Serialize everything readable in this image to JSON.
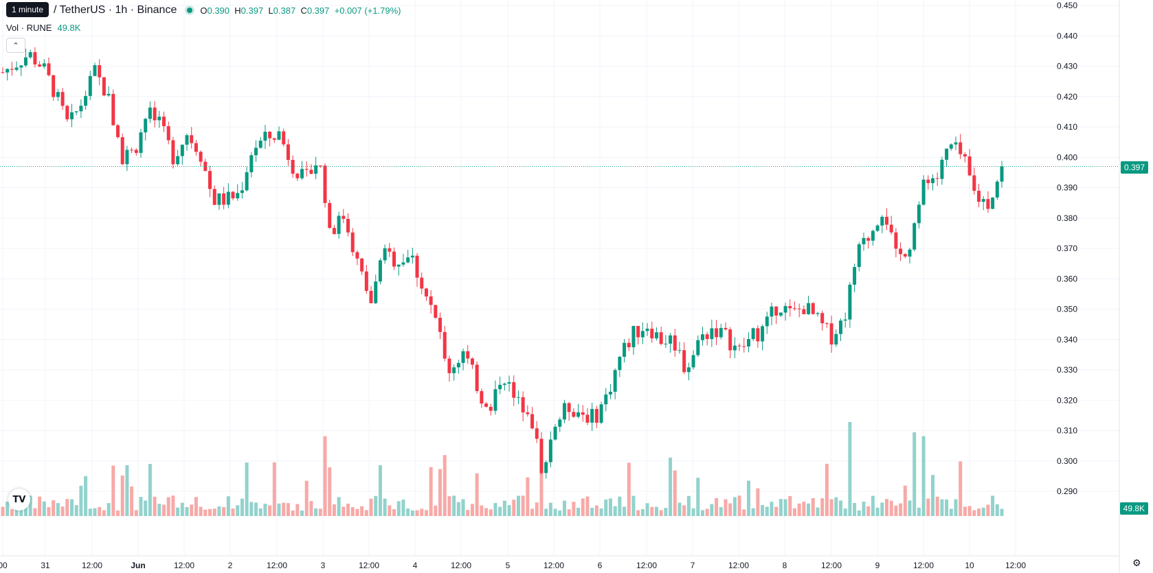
{
  "tooltip": "1 minute",
  "header": {
    "symbol": "/ TetherUS · 1h · Binance",
    "open_label": "O",
    "open": "0.390",
    "high_label": "H",
    "high": "0.397",
    "low_label": "L",
    "low": "0.387",
    "close_label": "C",
    "close": "0.397",
    "change": "+0.007 (+1.79%)"
  },
  "volume": {
    "label": "Vol · RUNE",
    "value": "49.8K"
  },
  "price_axis": {
    "ticks": [
      "0.450",
      "0.440",
      "0.430",
      "0.420",
      "0.410",
      "0.400",
      "0.390",
      "0.380",
      "0.370",
      "0.360",
      "0.350",
      "0.340",
      "0.330",
      "0.320",
      "0.310",
      "0.300",
      "0.290"
    ],
    "last_price": "0.397",
    "last_volume": "49.8K"
  },
  "time_axis": {
    "labels": [
      "00",
      "31",
      "12:00",
      "Jun",
      "12:00",
      "2",
      "12:00",
      "3",
      "12:00",
      "4",
      "12:00",
      "5",
      "12:00",
      "6",
      "12:00",
      "7",
      "12:00",
      "8",
      "12:00",
      "9",
      "12:00",
      "10",
      "12:00"
    ]
  },
  "colors": {
    "up": "#089981",
    "down": "#f23645",
    "up_volume": "#92d2cc",
    "down_volume": "#f7a9a7",
    "grid": "#f0f3fa"
  },
  "icons": {
    "logo": "tradingview-logo-icon",
    "collapse": "chevron-up-icon",
    "settings": "gear-icon"
  },
  "chart_data": {
    "type": "candlestick",
    "symbol_pair": "TetherUS",
    "interval": "1h",
    "exchange": "Binance",
    "ylim": [
      0.285,
      0.452
    ],
    "keypoints": [
      {
        "x": "31 00:00",
        "y": 0.428
      },
      {
        "x": "31 02:00",
        "y": 0.431
      },
      {
        "x": "31 05:00",
        "y": 0.434
      },
      {
        "x": "31 09:00",
        "y": 0.43
      },
      {
        "x": "31 12:00",
        "y": 0.421
      },
      {
        "x": "31 17:00",
        "y": 0.41
      },
      {
        "x": "31 22:00",
        "y": 0.418
      },
      {
        "x": "Jun 1 03:00",
        "y": 0.428
      },
      {
        "x": "Jun 1 06:00",
        "y": 0.42
      },
      {
        "x": "Jun 1 09:00",
        "y": 0.4
      },
      {
        "x": "Jun 1 12:00",
        "y": 0.402
      },
      {
        "x": "Jun 1 16:00",
        "y": 0.415
      },
      {
        "x": "Jun 1 20:00",
        "y": 0.41
      },
      {
        "x": "2 00:00",
        "y": 0.4
      },
      {
        "x": "2 04:00",
        "y": 0.408
      },
      {
        "x": "2 08:00",
        "y": 0.402
      },
      {
        "x": "2 12:00",
        "y": 0.386
      },
      {
        "x": "2 17:00",
        "y": 0.386
      },
      {
        "x": "2 22:00",
        "y": 0.388
      },
      {
        "x": "3 02:00",
        "y": 0.403
      },
      {
        "x": "3 07:00",
        "y": 0.406
      },
      {
        "x": "3 11:00",
        "y": 0.408
      },
      {
        "x": "3 15:00",
        "y": 0.398
      },
      {
        "x": "3 19:00",
        "y": 0.392
      },
      {
        "x": "3 22:00",
        "y": 0.4
      },
      {
        "x": "4 01:00",
        "y": 0.376
      },
      {
        "x": "4 05:00",
        "y": 0.381
      },
      {
        "x": "4 09:00",
        "y": 0.365
      },
      {
        "x": "4 12:00",
        "y": 0.352
      },
      {
        "x": "4 15:00",
        "y": 0.368
      },
      {
        "x": "4 19:00",
        "y": 0.366
      },
      {
        "x": "4 23:00",
        "y": 0.368
      },
      {
        "x": "5 03:00",
        "y": 0.357
      },
      {
        "x": "5 06:00",
        "y": 0.345
      },
      {
        "x": "5 09:00",
        "y": 0.33
      },
      {
        "x": "5 13:00",
        "y": 0.336
      },
      {
        "x": "5 17:00",
        "y": 0.326
      },
      {
        "x": "5 20:00",
        "y": 0.314
      },
      {
        "x": "5 22:00",
        "y": 0.33
      },
      {
        "x": "6 02:00",
        "y": 0.319
      },
      {
        "x": "6 05:00",
        "y": 0.318
      },
      {
        "x": "6 07:00",
        "y": 0.298
      },
      {
        "x": "6 09:00",
        "y": 0.312
      },
      {
        "x": "6 12:00",
        "y": 0.318
      },
      {
        "x": "6 16:00",
        "y": 0.316
      },
      {
        "x": "6 20:00",
        "y": 0.314
      },
      {
        "x": "7 00:00",
        "y": 0.322
      },
      {
        "x": "7 04:00",
        "y": 0.335
      },
      {
        "x": "7 08:00",
        "y": 0.342
      },
      {
        "x": "7 12:00",
        "y": 0.345
      },
      {
        "x": "7 16:00",
        "y": 0.34
      },
      {
        "x": "7 20:00",
        "y": 0.34
      },
      {
        "x": "7 23:00",
        "y": 0.33
      },
      {
        "x": "8 02:00",
        "y": 0.34
      },
      {
        "x": "8 05:00",
        "y": 0.344
      },
      {
        "x": "8 09:00",
        "y": 0.341
      },
      {
        "x": "8 13:00",
        "y": 0.336
      },
      {
        "x": "8 17:00",
        "y": 0.341
      },
      {
        "x": "8 21:00",
        "y": 0.344
      },
      {
        "x": "9 00:00",
        "y": 0.352
      },
      {
        "x": "9 04:00",
        "y": 0.348
      },
      {
        "x": "9 08:00",
        "y": 0.351
      },
      {
        "x": "9 12:00",
        "y": 0.346
      },
      {
        "x": "9 14:00",
        "y": 0.341
      },
      {
        "x": "9 17:00",
        "y": 0.347
      },
      {
        "x": "9 20:00",
        "y": 0.368
      },
      {
        "x": "9 23:00",
        "y": 0.375
      },
      {
        "x": "10 02:00",
        "y": 0.384
      },
      {
        "x": "10 05:00",
        "y": 0.366
      },
      {
        "x": "10 08:00",
        "y": 0.372
      },
      {
        "x": "10 11:00",
        "y": 0.39
      },
      {
        "x": "10 14:00",
        "y": 0.392
      },
      {
        "x": "10 17:00",
        "y": 0.404
      },
      {
        "x": "10 20:00",
        "y": 0.4
      },
      {
        "x": "10 22:00",
        "y": 0.387
      },
      {
        "x": "11 01:00",
        "y": 0.385
      },
      {
        "x": "11 03:00",
        "y": 0.397
      }
    ]
  }
}
